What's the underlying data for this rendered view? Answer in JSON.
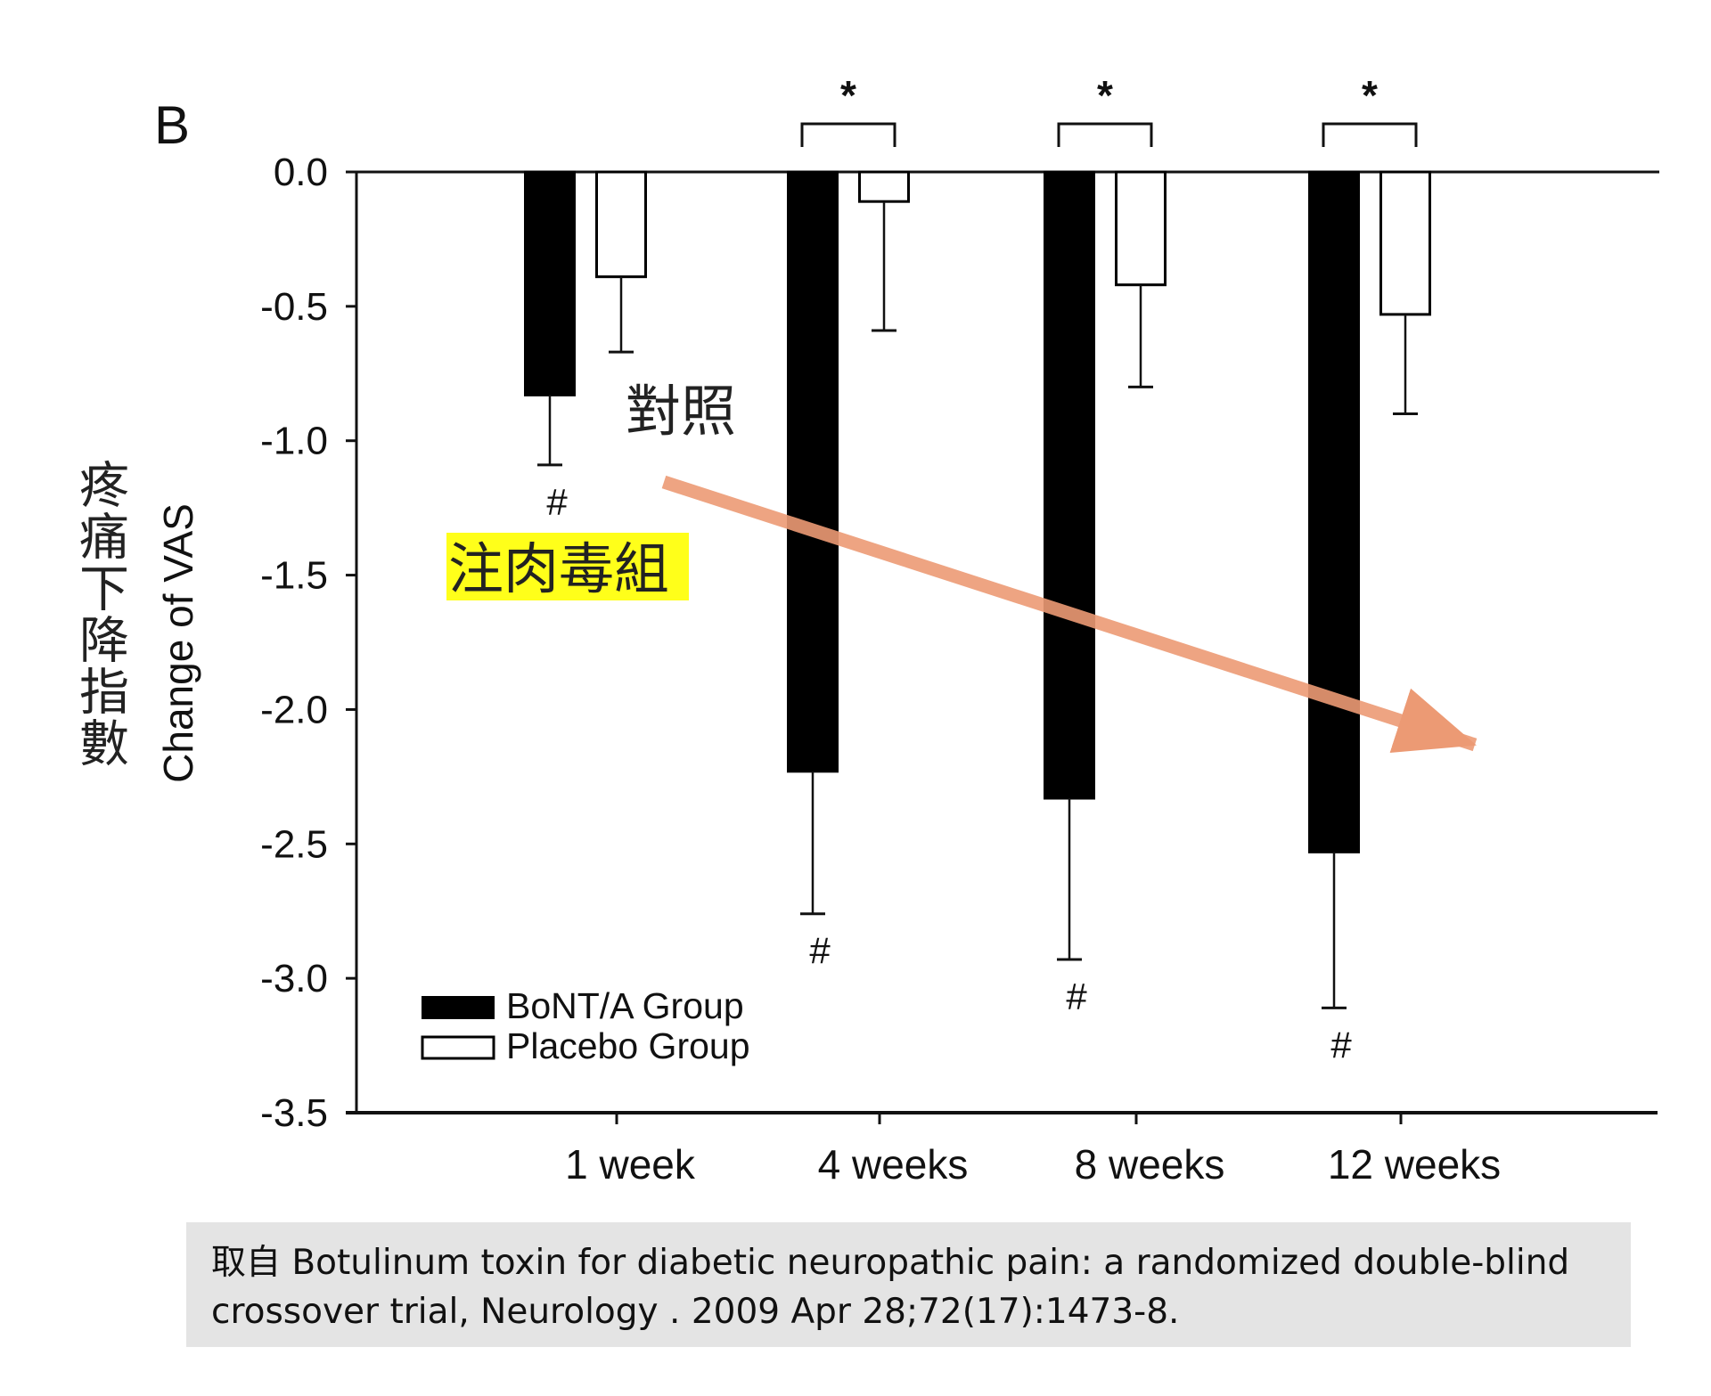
{
  "panel_label": "B",
  "chinese_ylabel": "疼痛下降指數",
  "annotation_control": "對照",
  "annotation_treatment": "注肉毒組",
  "colors": {
    "bont_bar": "#000000",
    "placebo_bar": "#ffffff",
    "highlight": "#ffff1a",
    "trend_arrow": "#ec9a74",
    "caption_bg": "#e4e4e4"
  },
  "icons": {
    "trend": "arrow-down-right"
  },
  "caption": {
    "line1": "取自 Botulinum toxin for diabetic neuropathic pain: a randomized double-blind",
    "line2": "crossover trial, Neurology . 2009 Apr 28;72(17):1473-8."
  },
  "chart_data": {
    "type": "bar",
    "title": "",
    "xlabel": "",
    "ylabel": "Change of VAS",
    "ylim": [
      -3.5,
      0.0
    ],
    "yticks": [
      "0.0",
      "-0.5",
      "-1.0",
      "-1.5",
      "-2.0",
      "-2.5",
      "-3.0",
      "-3.5"
    ],
    "categories": [
      "1 week",
      "4 weeks",
      "8 weeks",
      "12 weeks"
    ],
    "series": [
      {
        "name": "BoNT/A Group",
        "values": [
          -0.83,
          -2.23,
          -2.33,
          -2.53
        ],
        "error": [
          0.26,
          0.53,
          0.6,
          0.58
        ],
        "color": "#000000"
      },
      {
        "name": "Placebo Group",
        "values": [
          -0.39,
          -0.11,
          -0.42,
          -0.53
        ],
        "error": [
          0.28,
          0.48,
          0.38,
          0.37
        ],
        "color": "#ffffff"
      }
    ],
    "significance_markers": [
      "*",
      "*",
      "*"
    ],
    "within_group_markers": [
      "#",
      "#",
      "#",
      "#"
    ],
    "legend": "bottom-left",
    "grid": false
  }
}
